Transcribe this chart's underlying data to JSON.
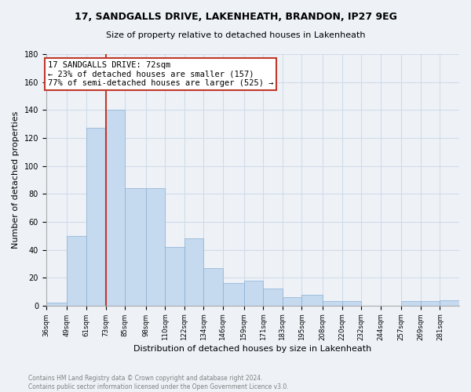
{
  "title": "17, SANDGALLS DRIVE, LAKENHEATH, BRANDON, IP27 9EG",
  "subtitle": "Size of property relative to detached houses in Lakenheath",
  "xlabel": "Distribution of detached houses by size in Lakenheath",
  "ylabel": "Number of detached properties",
  "footer1": "Contains HM Land Registry data © Crown copyright and database right 2024.",
  "footer2": "Contains public sector information licensed under the Open Government Licence v3.0.",
  "annotation_line1": "17 SANDGALLS DRIVE: 72sqm",
  "annotation_line2": "← 23% of detached houses are smaller (157)",
  "annotation_line3": "77% of semi-detached houses are larger (525) →",
  "bin_edges": [
    36,
    49,
    61,
    73,
    85,
    98,
    110,
    122,
    134,
    146,
    159,
    171,
    183,
    195,
    208,
    220,
    232,
    244,
    257,
    269,
    281
  ],
  "bin_counts": [
    2,
    50,
    127,
    140,
    84,
    84,
    42,
    48,
    27,
    16,
    18,
    12,
    6,
    8,
    3,
    3,
    0,
    0,
    3,
    3,
    4
  ],
  "bar_color": "#c5d9ef",
  "bar_edgecolor": "#8bafd4",
  "vline_color": "#c0392b",
  "vline_x": 73,
  "annotation_box_color": "#c0392b",
  "grid_color": "#d0dce8",
  "ylim": [
    0,
    180
  ],
  "yticks": [
    0,
    20,
    40,
    60,
    80,
    100,
    120,
    140,
    160,
    180
  ],
  "bg_color": "#eef2f7",
  "title_fontsize": 9,
  "subtitle_fontsize": 8
}
